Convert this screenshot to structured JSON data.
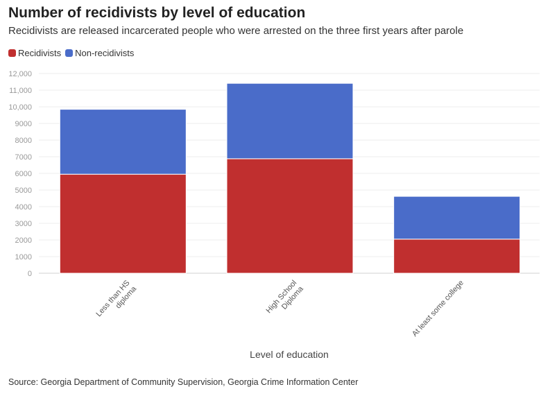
{
  "title": "Number of recidivists by level of education",
  "subtitle": "Recidivists are released incarcerated people who were arrested on the three first years after parole",
  "source": "Source: Georgia Department of Community Supervision, Georgia Crime Information Center",
  "chart_data": {
    "type": "bar",
    "stacked": true,
    "categories": [
      [
        "Less than HS",
        "diploma"
      ],
      [
        "High School",
        "Diploma"
      ],
      [
        "At least some college"
      ]
    ],
    "series": [
      {
        "name": "Recidivists",
        "color": "#c02f2f",
        "values": [
          5950,
          6880,
          2050
        ]
      },
      {
        "name": "Non-recidivists",
        "color": "#4a6cc9",
        "values": [
          3900,
          4530,
          2570
        ]
      }
    ],
    "xlabel": "Level of education",
    "ylabel": "",
    "ylim": [
      0,
      12000
    ],
    "yticks": [
      0,
      1000,
      2000,
      3000,
      4000,
      5000,
      6000,
      7000,
      8000,
      9000,
      10000,
      11000,
      12000
    ],
    "ytick_labels": [
      "0",
      "1000",
      "2000",
      "3000",
      "4000",
      "5000",
      "6000",
      "7000",
      "8000",
      "9000",
      "10,000",
      "11,000",
      "12,000"
    ],
    "legend_position": "top-left",
    "grid": true
  }
}
